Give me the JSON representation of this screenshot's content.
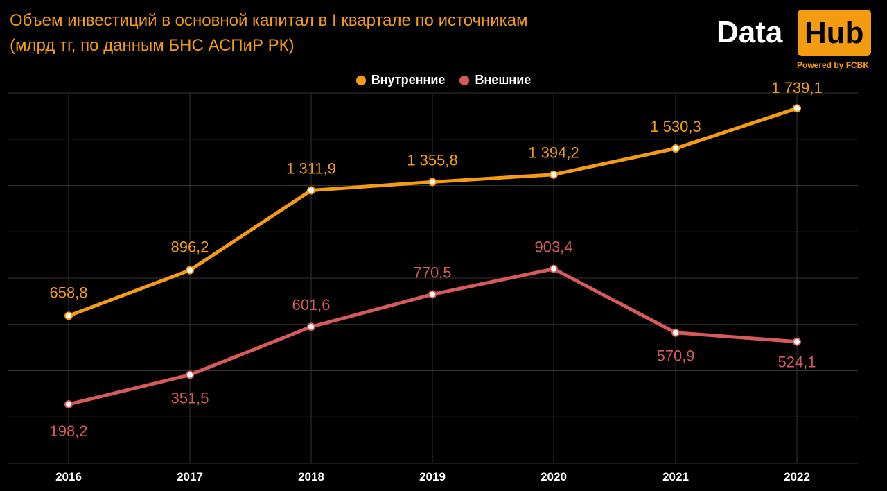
{
  "title_line1": "Объем инвестиций в основной капитал в I квартале по источникам",
  "title_line2": "(млрд тг, по данным БНС АСПиР РК)",
  "logo": {
    "data": "Data",
    "hub": "Hub",
    "sub": "Powered by FCBK"
  },
  "colors": {
    "domestic": "#f39c12",
    "external": "#d65a5a",
    "grid": "#333333",
    "axis_text": "#ffffff"
  },
  "chart_data": {
    "type": "line",
    "categories": [
      "2016",
      "2017",
      "2018",
      "2019",
      "2020",
      "2021",
      "2022"
    ],
    "series": [
      {
        "name": "Внутренние",
        "values": [
          658.8,
          896.2,
          1311.9,
          1355.8,
          1394.2,
          1530.3,
          1739.1
        ],
        "labels": [
          "658,8",
          "896,2",
          "1 311,9",
          "1 355,8",
          "1 394,2",
          "1 530,3",
          "1 739,1"
        ]
      },
      {
        "name": "Внешние",
        "values": [
          198.2,
          351.5,
          601.6,
          770.5,
          903.4,
          570.9,
          524.1
        ],
        "labels": [
          "198,2",
          "351,5",
          "601,6",
          "770,5",
          "903,4",
          "570,9",
          "524,1"
        ]
      }
    ],
    "legend_position": "top-center",
    "grid": true
  }
}
